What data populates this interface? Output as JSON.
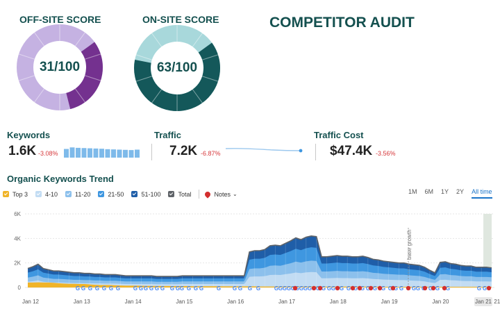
{
  "header": {
    "title": "COMPETITOR AUDIT"
  },
  "scores": {
    "off_site": {
      "label": "OFF-SITE SCORE",
      "display": "31/100",
      "score": 31,
      "total": 100,
      "light_color": "#c5b2e2",
      "dark_color": "#74318f"
    },
    "on_site": {
      "label": "ON-SITE SCORE",
      "display": "63/100",
      "score": 63,
      "total": 100,
      "light_color": "#a8d8db",
      "dark_color": "#14585a"
    }
  },
  "metrics": {
    "keywords": {
      "label": "Keywords",
      "value": "1.6K",
      "change": "-3.08%",
      "bars": [
        78,
        92,
        88,
        86,
        84,
        82,
        80,
        76,
        74,
        72,
        70,
        68,
        72
      ]
    },
    "traffic": {
      "label": "Traffic",
      "value": "7.2K",
      "change": "-6.87%"
    },
    "traffic_cost": {
      "label": "Traffic Cost",
      "value": "$47.4K",
      "change": "-3.56%"
    }
  },
  "trend": {
    "title": "Organic Keywords Trend",
    "legend": [
      {
        "label": "Top 3",
        "color": "#f0b429"
      },
      {
        "label": "4-10",
        "color": "#c2dcf3"
      },
      {
        "label": "11-20",
        "color": "#8cc0ec"
      },
      {
        "label": "21-50",
        "color": "#3f97e0"
      },
      {
        "label": "51-100",
        "color": "#1f5ea8"
      },
      {
        "label": "Total",
        "color": "#5f6368"
      }
    ],
    "notes_label": "Notes",
    "ranges": [
      "1M",
      "6M",
      "1Y",
      "2Y",
      "All time"
    ],
    "active_range": "All time"
  },
  "chart_data": {
    "type": "area",
    "title": "Organic Keywords Trend",
    "x_labels": [
      "Jan 12",
      "Jan 13",
      "Jan 14",
      "Jan 15",
      "Jan 16",
      "Jan 17",
      "Jan 18",
      "Jan 19",
      "Jan 20",
      "Jan 21"
    ],
    "y_ticks": [
      "0",
      "2K",
      "4K",
      "6K"
    ],
    "ylim": [
      0,
      6000
    ],
    "annotation": "base growth",
    "total": [
      1550,
      1700,
      1900,
      1550,
      1450,
      1350,
      1350,
      1300,
      1250,
      1200,
      1200,
      1150,
      1150,
      1100,
      1100,
      1050,
      1050,
      1050,
      1000,
      950,
      950,
      950,
      950,
      950,
      950,
      900,
      900,
      900,
      900,
      900,
      950,
      950,
      950,
      950,
      950,
      950,
      950,
      950,
      950,
      950,
      950,
      950,
      950,
      2900,
      3000,
      3000,
      3100,
      3400,
      3450,
      3400,
      3600,
      3800,
      4050,
      3900,
      4100,
      4200,
      4150,
      2500,
      2500,
      2550,
      2600,
      2550,
      2550,
      2500,
      2500,
      2550,
      2450,
      2300,
      2250,
      2150,
      2100,
      2050,
      2000,
      2000,
      1900,
      1850,
      1800,
      1650,
      1400,
      1200,
      2050,
      2100,
      1950,
      1900,
      1800,
      1750,
      1750,
      1650,
      1650,
      1650,
      1600
    ],
    "top3": [
      400,
      400,
      420,
      400,
      400,
      380,
      350,
      320,
      300,
      300,
      280,
      280,
      250,
      220,
      200,
      200,
      200,
      180,
      160,
      150,
      150,
      150,
      140,
      130,
      130,
      120,
      120,
      120,
      110,
      110,
      110,
      110,
      100,
      100,
      100,
      100,
      100,
      100,
      90,
      90,
      90,
      90,
      90,
      90,
      90,
      80,
      80,
      80,
      80,
      80,
      80,
      80,
      80,
      80,
      80,
      80,
      80,
      70,
      70,
      70,
      70,
      70,
      70,
      70,
      70,
      70,
      70,
      70,
      60,
      60,
      60,
      60,
      60,
      60,
      60,
      60,
      60,
      60,
      60,
      60,
      60,
      60,
      60,
      60,
      60,
      60,
      60,
      60,
      60,
      60,
      60
    ]
  }
}
